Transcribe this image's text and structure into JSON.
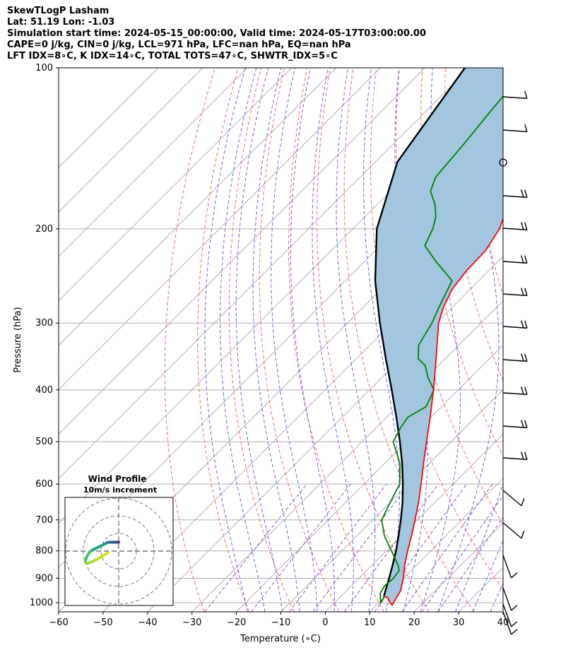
{
  "header": {
    "title": "SkewTLogP Lasham",
    "location": "Lat: 51.19   Lon: -1.03",
    "times": "Simulation start time: 2024-05-15_00:00:00, Valid time: 2024-05-17T03:00:00.00",
    "indices1": "CAPE=0 j/kg, CIN=0 j/kg, LCL=971 hPa, LFC=nan hPa, EQ=nan hPa",
    "indices2": "LFT IDX=8∘C, K IDX=14∘C, TOTAL TOTS=47∘C, SHWTR_IDX=5∘C"
  },
  "colors": {
    "temperature": "#ff0000",
    "dewpoint": "#008000",
    "parcel": "#000000",
    "cin_shading": "#a3c6e0",
    "isotherm": "#b0b0b0",
    "dry_adiabat": "#ff6666",
    "moist_adiabat": "#6666ff",
    "mixing_ratio": "#9955cc"
  },
  "chart_data": {
    "type": "line",
    "skew_t": true,
    "xlabel": "Temperature (∘C)",
    "ylabel": "Pressure (hPa)",
    "xlim": [
      -60,
      40
    ],
    "ylim": [
      1040,
      100
    ],
    "y_scale": "log",
    "x_ticks": [
      -60,
      -50,
      -40,
      -30,
      -20,
      -10,
      0,
      10,
      20,
      30,
      40
    ],
    "x_tick_labels": [
      "−60",
      "−50",
      "−40",
      "−30",
      "−20",
      "−10",
      "0",
      "10",
      "20",
      "30",
      "40"
    ],
    "y_ticks": [
      1000,
      900,
      800,
      700,
      600,
      500,
      400,
      300,
      200,
      100
    ],
    "grid": true,
    "series": [
      {
        "name": "Temperature",
        "pressure": [
          971,
          980,
          1000,
          1005,
          1010,
          950,
          900,
          850,
          800,
          750,
          700,
          650,
          600,
          550,
          500,
          450,
          400,
          350,
          300,
          280,
          260,
          240,
          220,
          200,
          180,
          160,
          150,
          140,
          130,
          120,
          110,
          100
        ],
        "temperature": [
          9.6,
          11.0,
          12.5,
          13.0,
          13.5,
          12.2,
          10.0,
          7.3,
          4.8,
          2.3,
          -0.5,
          -3.6,
          -7.2,
          -11.2,
          -15.5,
          -20.2,
          -25.6,
          -32.0,
          -39.5,
          -42.0,
          -44.0,
          -45.0,
          -45.2,
          -47.0,
          -50.5,
          -53.5,
          -55.0,
          -56.0,
          -56.0,
          -56.3,
          -56.5,
          -56.5
        ]
      },
      {
        "name": "Dewpoint",
        "pressure": [
          971,
          980,
          1000,
          960,
          930,
          900,
          870,
          850,
          800,
          750,
          700,
          650,
          600,
          550,
          500,
          470,
          450,
          430,
          400,
          380,
          360,
          350,
          330,
          300,
          280,
          250,
          230,
          215,
          200,
          190,
          180,
          170,
          160,
          140,
          120,
          100
        ],
        "dewpoint": [
          9.6,
          10.0,
          10.4,
          8.2,
          7.5,
          7.8,
          7.3,
          5.8,
          1.2,
          -3.8,
          -8.0,
          -10.0,
          -12.0,
          -16.5,
          -23.0,
          -24.5,
          -25.2,
          -23.5,
          -25.5,
          -29.5,
          -33.0,
          -36.0,
          -39.0,
          -41.0,
          -43.0,
          -46.0,
          -54.0,
          -60.0,
          -62.0,
          -64.0,
          -67.0,
          -71.0,
          -73.0,
          -74.0,
          -75.5,
          -77.0
        ]
      },
      {
        "name": "Parcel",
        "pressure": [
          971,
          950,
          900,
          850,
          800,
          750,
          700,
          650,
          600,
          550,
          500,
          450,
          400,
          350,
          300,
          250,
          200,
          150,
          100
        ],
        "temperature": [
          9.6,
          8.8,
          6.8,
          4.6,
          2.2,
          -0.6,
          -3.7,
          -7.2,
          -11.3,
          -16.0,
          -21.5,
          -27.8,
          -35.0,
          -43.3,
          -52.7,
          -63.3,
          -74.6,
          -85.0,
          -91.0
        ]
      }
    ],
    "hodograph": {
      "title": "Wind Profile",
      "subtitle": "10m/s increment",
      "ring_step": 10,
      "max_speed": 30
    }
  }
}
